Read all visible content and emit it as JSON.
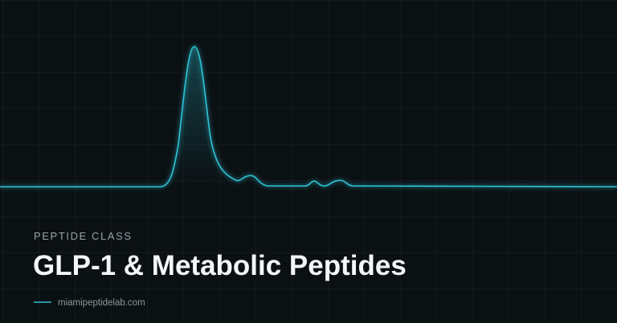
{
  "eyebrow": "PEPTIDE CLASS",
  "title": "GLP-1 & Metabolic Peptides",
  "site": "miamipeptidelab.com"
}
